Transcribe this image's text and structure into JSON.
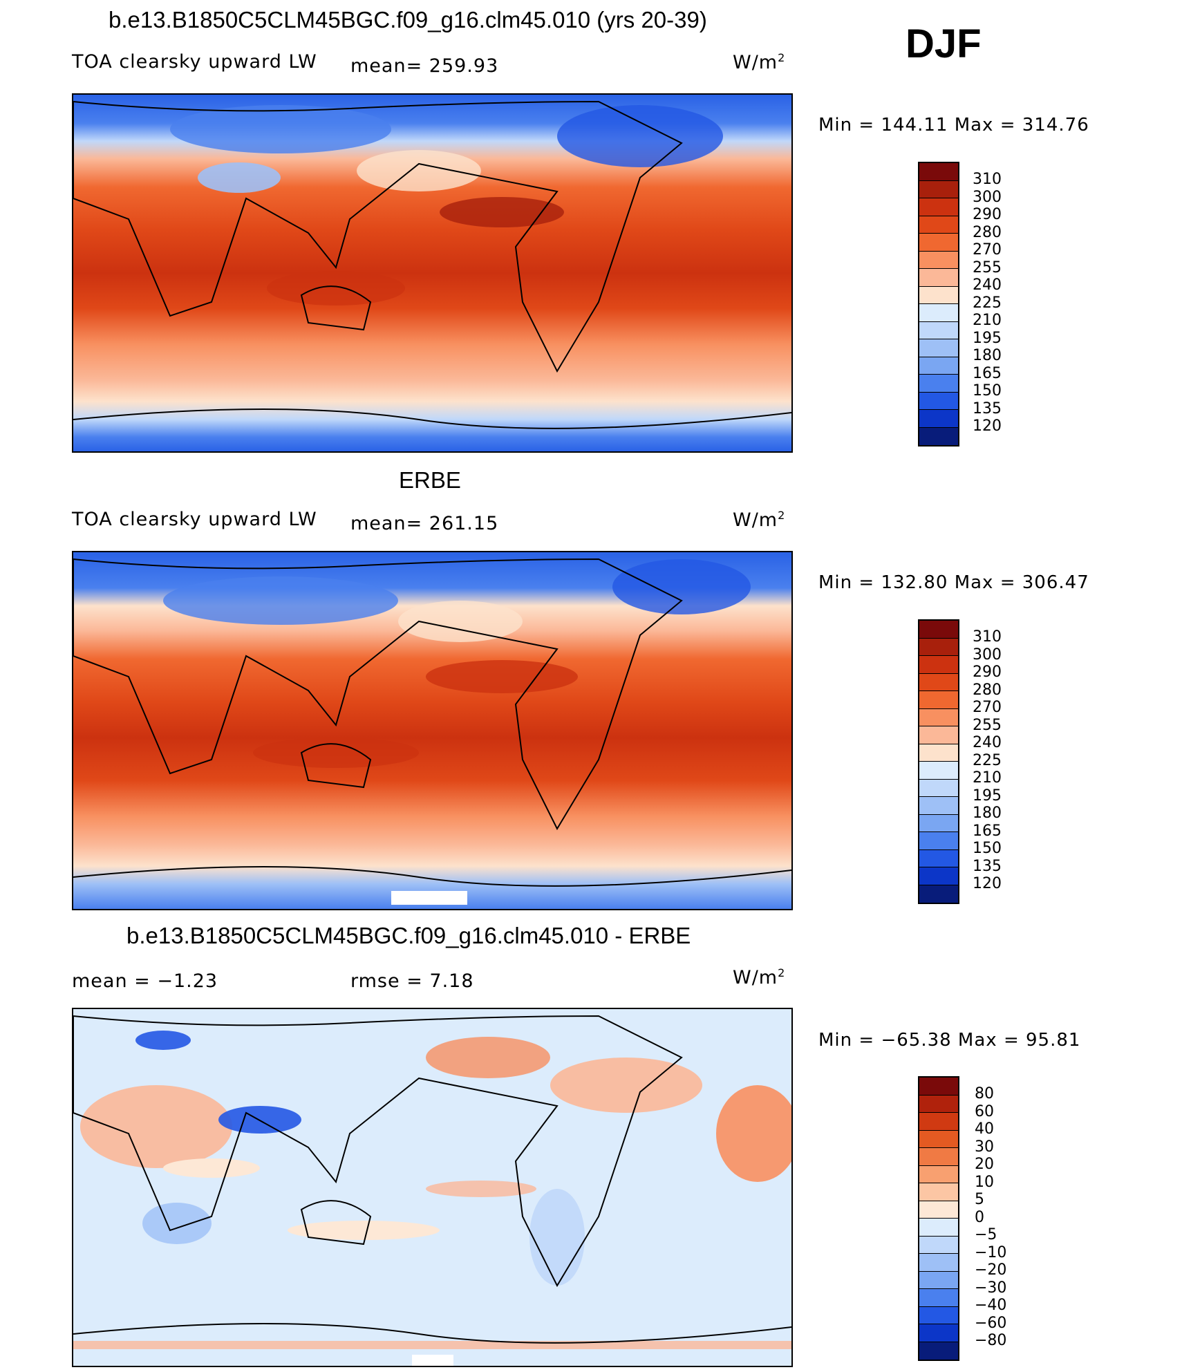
{
  "season": "DJF",
  "units": "W/m",
  "units_sup": "2",
  "panels": [
    {
      "title": "b.e13.B1850C5CLM45BGC.f09_g16.clm45.010 (yrs 20-39)",
      "left_label": "TOA clearsky upward LW",
      "mid_label": "mean= 259.93",
      "min_max": "Min  =  144.11  Max  =  314.76",
      "scale": "abs"
    },
    {
      "title": "ERBE",
      "left_label": "TOA clearsky upward LW",
      "mid_label": "mean= 261.15",
      "min_max": "Min  =  132.80  Max  =  306.47",
      "scale": "abs"
    },
    {
      "title": "b.e13.B1850C5CLM45BGC.f09_g16.clm45.010 - ERBE",
      "left_label": "mean =   −1.23",
      "mid_label": "rmse =    7.18",
      "min_max": "Min  =  −65.38  Max  =   95.81",
      "scale": "diff"
    }
  ],
  "colorbars": {
    "abs": {
      "labels": [
        "310",
        "300",
        "290",
        "280",
        "270",
        "255",
        "240",
        "225",
        "210",
        "195",
        "180",
        "165",
        "150",
        "135",
        "120"
      ],
      "colors": [
        "#7a0a0a",
        "#a8200c",
        "#cc3210",
        "#e04818",
        "#f06830",
        "#f89060",
        "#fbb898",
        "#fde2cc",
        "#dcecfc",
        "#c0d8fa",
        "#9ec0f6",
        "#7aa6f2",
        "#4a80ee",
        "#2358e4",
        "#0c36c8",
        "#081c7a"
      ]
    },
    "diff": {
      "labels": [
        "80",
        "60",
        "40",
        "30",
        "20",
        "10",
        "5",
        "0",
        "−5",
        "−10",
        "−20",
        "−30",
        "−40",
        "−60",
        "−80"
      ],
      "colors": [
        "#7a0a0a",
        "#b0220c",
        "#d03a12",
        "#e45a22",
        "#f07a44",
        "#f8a070",
        "#fcc6a4",
        "#fde8d6",
        "#dcecfc",
        "#c0d8fa",
        "#9ec0f6",
        "#7aa6f2",
        "#4a80ee",
        "#2358e4",
        "#0c36c8",
        "#081c7a"
      ]
    }
  }
}
